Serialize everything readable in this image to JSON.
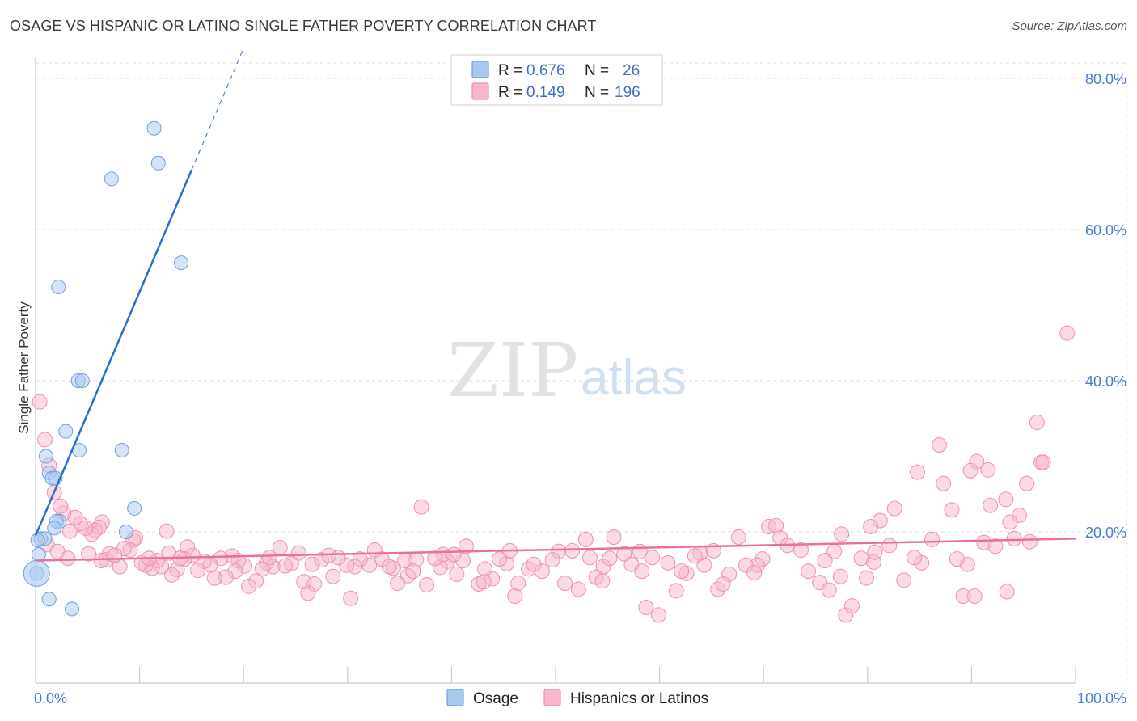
{
  "header": {
    "title": "OSAGE VS HISPANIC OR LATINO SINGLE FATHER POVERTY CORRELATION CHART",
    "source": "Source: ZipAtlas.com"
  },
  "watermark": {
    "zip": "ZIP",
    "atlas": "atlas"
  },
  "legend": {
    "rows": [
      {
        "r_label": "R =",
        "r_value": "0.676",
        "n_label": "N =",
        "n_value": "26"
      },
      {
        "r_label": "R =",
        "r_value": "0.149",
        "n_label": "N =",
        "n_value": "196"
      }
    ]
  },
  "chart_data": {
    "type": "scatter",
    "title": "OSAGE VS HISPANIC OR LATINO SINGLE FATHER POVERTY CORRELATION CHART",
    "xlabel": "",
    "ylabel": "Single Father Poverty",
    "xlim": [
      0,
      100
    ],
    "ylim": [
      0,
      84
    ],
    "x_tick_labels": [
      "0.0%",
      "100.0%"
    ],
    "y_ticks": [
      20,
      40,
      60,
      80
    ],
    "y_tick_labels": [
      "20.0%",
      "40.0%",
      "60.0%",
      "80.0%"
    ],
    "grid": true,
    "legend_position": "top-center",
    "colors": {
      "osage_fill": "#a9c8f0",
      "osage_stroke": "#6f9fe0",
      "osage_line": "#2a6fd0",
      "hisp_fill": "#f7b6cb",
      "hisp_stroke": "#ee8fb0",
      "hisp_line": "#e8709a",
      "grid": "#dddddd",
      "axis": "#cccccc"
    },
    "series": [
      {
        "name": "Osage",
        "r": 0.676,
        "n": 26,
        "trend": {
          "x0": 0,
          "y0": 19.5,
          "x1": 20,
          "y1": 84,
          "solid_until_x": 15
        },
        "points": [
          [
            11.4,
            73.4
          ],
          [
            11.8,
            68.8
          ],
          [
            7.3,
            66.7
          ],
          [
            14,
            55.6
          ],
          [
            2.2,
            52.4
          ],
          [
            4.1,
            40
          ],
          [
            4.5,
            40
          ],
          [
            2.9,
            33.3
          ],
          [
            4.2,
            30.8
          ],
          [
            8.3,
            30.8
          ],
          [
            1,
            30
          ],
          [
            1.3,
            27.8
          ],
          [
            1.6,
            27.1
          ],
          [
            1.9,
            27.1
          ],
          [
            9.5,
            23.1
          ],
          [
            2.3,
            21.4
          ],
          [
            2,
            21.4
          ],
          [
            8.7,
            20
          ],
          [
            1.8,
            20.5
          ],
          [
            0.5,
            19.1
          ],
          [
            0.9,
            19.1
          ],
          [
            0.2,
            18.9
          ],
          [
            0.3,
            17
          ],
          [
            0.1,
            14.5
          ],
          [
            1.3,
            11.1
          ],
          [
            3.5,
            9.8
          ]
        ]
      },
      {
        "name": "Hispanics or Latinos",
        "r": 0.149,
        "n": 196,
        "trend": {
          "x0": 0,
          "y0": 16.2,
          "x1": 100,
          "y1": 19.1
        },
        "points": [
          [
            99.2,
            46.3
          ],
          [
            96.3,
            34.5
          ],
          [
            96.7,
            29.2
          ],
          [
            96.9,
            29.2
          ],
          [
            95.3,
            26.4
          ],
          [
            93.3,
            24.3
          ],
          [
            94.6,
            22.2
          ],
          [
            91.6,
            28.2
          ],
          [
            91.8,
            23.5
          ],
          [
            90.5,
            29.3
          ],
          [
            89.9,
            28.1
          ],
          [
            86.9,
            31.5
          ],
          [
            87.3,
            26.4
          ],
          [
            84.8,
            27.9
          ],
          [
            88.1,
            22.9
          ],
          [
            86.2,
            19
          ],
          [
            92.3,
            18.1
          ],
          [
            93.7,
            21.3
          ],
          [
            93.4,
            12.1
          ],
          [
            89.6,
            15.7
          ],
          [
            90.3,
            11.5
          ],
          [
            89.2,
            11.5
          ],
          [
            82.6,
            23.1
          ],
          [
            81.2,
            21.5
          ],
          [
            80.3,
            20.7
          ],
          [
            85.2,
            15.9
          ],
          [
            82.1,
            18.2
          ],
          [
            83.5,
            13.6
          ],
          [
            77.5,
            19.7
          ],
          [
            76.8,
            17.4
          ],
          [
            79.4,
            16.5
          ],
          [
            80.6,
            16
          ],
          [
            75.4,
            13.3
          ],
          [
            76.3,
            12.3
          ],
          [
            77.4,
            14.1
          ],
          [
            74.3,
            14.8
          ],
          [
            77.9,
            9
          ],
          [
            78.5,
            10.2
          ],
          [
            71.6,
            19.2
          ],
          [
            72.3,
            18.2
          ],
          [
            70.5,
            20.7
          ],
          [
            71.2,
            20.8
          ],
          [
            69.9,
            16.4
          ],
          [
            69.4,
            15.6
          ],
          [
            67.6,
            19.3
          ],
          [
            66.7,
            14.4
          ],
          [
            65.6,
            12.4
          ],
          [
            64.3,
            15.6
          ],
          [
            63.9,
            17.2
          ],
          [
            65.2,
            17.5
          ],
          [
            66.1,
            13.1
          ],
          [
            60.8,
            15.9
          ],
          [
            62.6,
            14.5
          ],
          [
            62.1,
            14.8
          ],
          [
            61.6,
            12.2
          ],
          [
            59.9,
            9
          ],
          [
            58.7,
            10
          ],
          [
            58.1,
            17.4
          ],
          [
            56.6,
            17.1
          ],
          [
            55.6,
            19.3
          ],
          [
            54.6,
            15.4
          ],
          [
            55.2,
            16.5
          ],
          [
            53.9,
            14
          ],
          [
            54.5,
            13.5
          ],
          [
            52.9,
            19
          ],
          [
            52.2,
            12.4
          ],
          [
            50.9,
            13.2
          ],
          [
            50.3,
            17.4
          ],
          [
            49.7,
            16.3
          ],
          [
            48.7,
            14.8
          ],
          [
            47.4,
            15.1
          ],
          [
            46.1,
            11.5
          ],
          [
            45.3,
            15.8
          ],
          [
            46.4,
            13.2
          ],
          [
            45.6,
            17.5
          ],
          [
            41.4,
            18.1
          ],
          [
            43.9,
            13.8
          ],
          [
            43.2,
            15.1
          ],
          [
            42.6,
            13.1
          ],
          [
            43.1,
            13.4
          ],
          [
            41.1,
            16.2
          ],
          [
            40.5,
            14.4
          ],
          [
            39.6,
            16.1
          ],
          [
            39.2,
            17
          ],
          [
            38.9,
            15.3
          ],
          [
            37.6,
            13
          ],
          [
            37.1,
            23.3
          ],
          [
            36.6,
            16.3
          ],
          [
            35.8,
            14.2
          ],
          [
            35.5,
            16.2
          ],
          [
            34.8,
            13.2
          ],
          [
            34.4,
            15.2
          ],
          [
            33.3,
            16.4
          ],
          [
            32.1,
            15.6
          ],
          [
            31.2,
            16.4
          ],
          [
            30.7,
            15.4
          ],
          [
            30.3,
            11.2
          ],
          [
            29.9,
            15.6
          ],
          [
            29.1,
            16.6
          ],
          [
            28.6,
            14.1
          ],
          [
            27.5,
            16.3
          ],
          [
            26.8,
            13.1
          ],
          [
            26.2,
            11.9
          ],
          [
            25.8,
            13.4
          ],
          [
            25.3,
            17.2
          ],
          [
            24.6,
            15.8
          ],
          [
            24,
            15.5
          ],
          [
            23.5,
            17.9
          ],
          [
            22.8,
            15.4
          ],
          [
            22.2,
            15.9
          ],
          [
            21.8,
            15.1
          ],
          [
            21.2,
            13.5
          ],
          [
            20.5,
            12.8
          ],
          [
            20.1,
            15.5
          ],
          [
            19.5,
            16.2
          ],
          [
            19.2,
            14.8
          ],
          [
            18.3,
            14
          ],
          [
            17.8,
            16.5
          ],
          [
            17.2,
            13.9
          ],
          [
            16.8,
            15.6
          ],
          [
            16.2,
            16.1
          ],
          [
            15.6,
            14.9
          ],
          [
            15.1,
            16.9
          ],
          [
            14.6,
            18
          ],
          [
            14.3,
            16.4
          ],
          [
            13.6,
            15
          ],
          [
            13.1,
            14.3
          ],
          [
            12.8,
            17.2
          ],
          [
            12.6,
            20.1
          ],
          [
            12.1,
            15.4
          ],
          [
            11.7,
            16.2
          ],
          [
            11.2,
            15.2
          ],
          [
            10.6,
            15.6
          ],
          [
            10.2,
            15.9
          ],
          [
            9.6,
            19.2
          ],
          [
            9.4,
            18.9
          ],
          [
            9.1,
            17.6
          ],
          [
            8.5,
            17.8
          ],
          [
            8.1,
            15.4
          ],
          [
            7.1,
            17.1
          ],
          [
            6.8,
            16.3
          ],
          [
            6.4,
            21.3
          ],
          [
            6.1,
            20.6
          ],
          [
            5.7,
            20.2
          ],
          [
            5.4,
            19.7
          ],
          [
            4.8,
            20.5
          ],
          [
            4.3,
            21.1
          ],
          [
            3.8,
            21.9
          ],
          [
            3.3,
            20.1
          ],
          [
            2.7,
            22.5
          ],
          [
            2.4,
            23.4
          ],
          [
            1.8,
            25.2
          ],
          [
            1.3,
            28.8
          ],
          [
            0.9,
            32.2
          ],
          [
            0.4,
            37.2
          ],
          [
            1.1,
            18.3
          ],
          [
            2.1,
            17.4
          ],
          [
            3.1,
            16.5
          ],
          [
            5.1,
            17.1
          ],
          [
            6.3,
            16.2
          ],
          [
            7.6,
            16.9
          ],
          [
            10.9,
            16.5
          ],
          [
            13.9,
            16.5
          ],
          [
            18.9,
            16.8
          ],
          [
            22.5,
            16.6
          ],
          [
            26.6,
            15.7
          ],
          [
            28.2,
            16.9
          ],
          [
            32.6,
            17.6
          ],
          [
            34,
            15.4
          ],
          [
            36.3,
            14.8
          ],
          [
            38.4,
            16.5
          ],
          [
            40.2,
            17
          ],
          [
            44.6,
            16.4
          ],
          [
            47.9,
            15.7
          ],
          [
            51.6,
            17.5
          ],
          [
            53.3,
            16.6
          ],
          [
            57.3,
            15.7
          ],
          [
            59.3,
            16.6
          ],
          [
            63.4,
            16.8
          ],
          [
            68.3,
            15.6
          ],
          [
            73.6,
            17.6
          ],
          [
            75.9,
            16.2
          ],
          [
            80.7,
            17.3
          ],
          [
            84.5,
            16.6
          ],
          [
            88.6,
            16.4
          ],
          [
            91.2,
            18.6
          ],
          [
            94.1,
            19.1
          ],
          [
            95.6,
            18.7
          ],
          [
            79.9,
            13.9
          ],
          [
            69.1,
            14.6
          ],
          [
            58.3,
            14.8
          ]
        ]
      }
    ]
  }
}
